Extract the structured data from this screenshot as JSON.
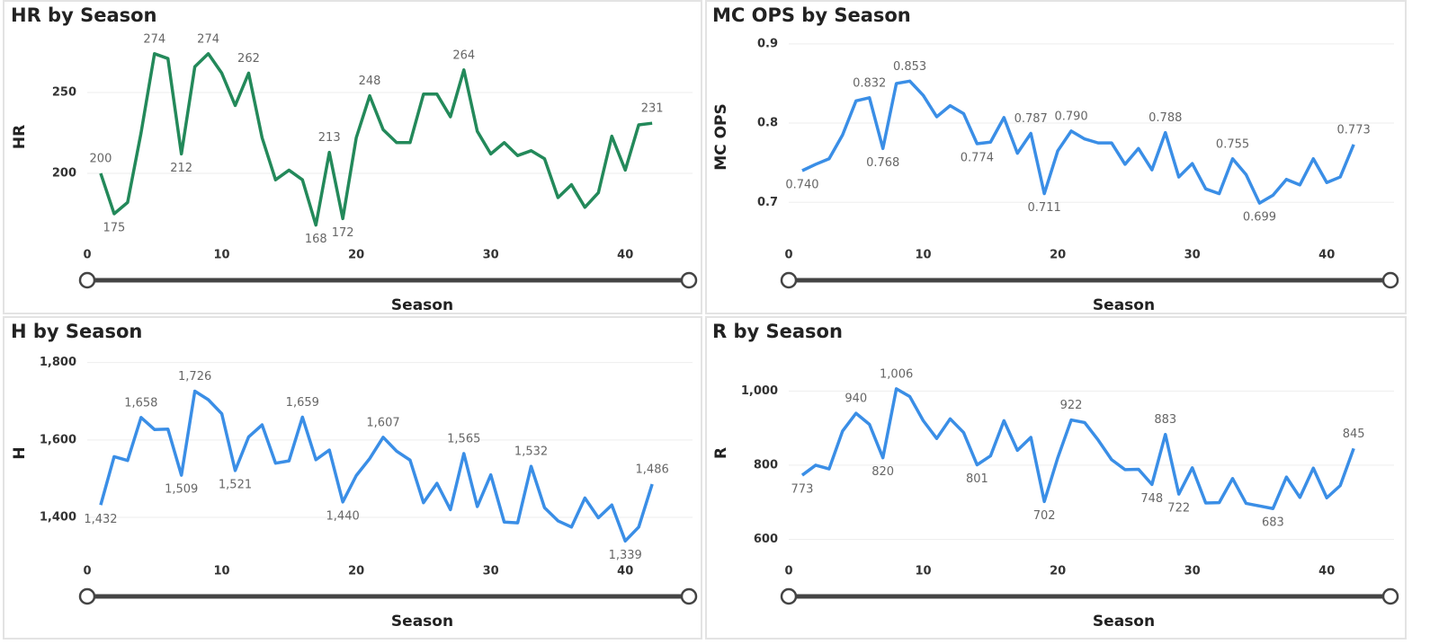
{
  "chart_data": [
    {
      "type": "line",
      "title": "HR by Season",
      "x_label": "Season",
      "y_label": "HR",
      "color": "#23895a",
      "x": [
        1,
        2,
        3,
        4,
        5,
        6,
        7,
        8,
        9,
        10,
        11,
        12,
        13,
        14,
        15,
        16,
        17,
        18,
        19,
        20,
        21,
        22,
        23,
        24,
        25,
        26,
        27,
        28,
        29,
        30,
        31,
        32,
        33,
        34,
        35,
        36,
        37,
        38,
        39,
        40,
        41,
        42
      ],
      "values": [
        200,
        175,
        182,
        225,
        274,
        271,
        212,
        266,
        274,
        262,
        242,
        262,
        222,
        196,
        202,
        196,
        168,
        213,
        172,
        222,
        248,
        227,
        219,
        219,
        249,
        249,
        235,
        264,
        226,
        212,
        219,
        211,
        214,
        209,
        185,
        193,
        179,
        188,
        223,
        202,
        230,
        231
      ],
      "value_labels": [
        "200",
        "175",
        null,
        null,
        "274",
        null,
        "212",
        null,
        "274",
        null,
        null,
        "262",
        null,
        null,
        null,
        null,
        "168",
        "213",
        "172",
        null,
        "248",
        null,
        null,
        null,
        null,
        null,
        null,
        "264",
        null,
        null,
        null,
        null,
        null,
        null,
        null,
        null,
        null,
        null,
        null,
        null,
        null,
        "231"
      ],
      "xlim": [
        0,
        45
      ],
      "xticks": [
        0,
        10,
        20,
        30,
        40
      ],
      "ylim": [
        160,
        285
      ],
      "yticks": [
        200,
        250
      ],
      "grid": true
    },
    {
      "type": "line",
      "title": "MC OPS by Season",
      "x_label": "Season",
      "y_label": "MC OPS",
      "color": "#3a8ee6",
      "x": [
        1,
        2,
        3,
        4,
        5,
        6,
        7,
        8,
        9,
        10,
        11,
        12,
        13,
        14,
        15,
        16,
        17,
        18,
        19,
        20,
        21,
        22,
        23,
        24,
        25,
        26,
        27,
        28,
        29,
        30,
        31,
        32,
        33,
        34,
        35,
        36,
        37,
        38,
        39,
        40,
        41,
        42
      ],
      "values": [
        0.74,
        0.748,
        0.755,
        0.785,
        0.828,
        0.832,
        0.768,
        0.85,
        0.853,
        0.835,
        0.808,
        0.822,
        0.812,
        0.774,
        0.776,
        0.807,
        0.762,
        0.787,
        0.711,
        0.765,
        0.79,
        0.78,
        0.775,
        0.775,
        0.748,
        0.768,
        0.741,
        0.788,
        0.732,
        0.749,
        0.717,
        0.711,
        0.755,
        0.735,
        0.699,
        0.709,
        0.729,
        0.722,
        0.755,
        0.725,
        0.732,
        0.773
      ],
      "value_labels": [
        "0.740",
        null,
        null,
        null,
        null,
        "0.832",
        "0.768",
        null,
        "0.853",
        null,
        null,
        null,
        null,
        "0.774",
        null,
        null,
        null,
        "0.787",
        "0.711",
        null,
        "0.790",
        null,
        null,
        null,
        null,
        null,
        null,
        "0.788",
        null,
        null,
        null,
        null,
        "0.755",
        null,
        "0.699",
        null,
        null,
        null,
        null,
        null,
        null,
        "0.773"
      ],
      "xlim": [
        0,
        45
      ],
      "xticks": [
        0,
        10,
        20,
        30,
        40
      ],
      "ylim": [
        0.655,
        0.91
      ],
      "yticks": [
        0.7,
        0.8,
        0.9
      ],
      "grid": true
    },
    {
      "type": "line",
      "title": "H by Season",
      "x_label": "Season",
      "y_label": "H",
      "color": "#3a8ee6",
      "x": [
        1,
        2,
        3,
        4,
        5,
        6,
        7,
        8,
        9,
        10,
        11,
        12,
        13,
        14,
        15,
        16,
        17,
        18,
        19,
        20,
        21,
        22,
        23,
        24,
        25,
        26,
        27,
        28,
        29,
        30,
        31,
        32,
        33,
        34,
        35,
        36,
        37,
        38,
        39,
        40,
        41,
        42
      ],
      "values": [
        1432,
        1557,
        1547,
        1658,
        1627,
        1628,
        1509,
        1726,
        1704,
        1668,
        1521,
        1608,
        1639,
        1540,
        1546,
        1659,
        1549,
        1574,
        1440,
        1508,
        1552,
        1607,
        1571,
        1548,
        1438,
        1488,
        1420,
        1565,
        1428,
        1510,
        1388,
        1386,
        1532,
        1425,
        1391,
        1375,
        1450,
        1399,
        1432,
        1339,
        1375,
        1486
      ],
      "value_labels": [
        "1,432",
        null,
        null,
        "1,658",
        null,
        null,
        "1,509",
        "1,726",
        null,
        null,
        "1,521",
        null,
        null,
        null,
        null,
        "1,659",
        null,
        null,
        "1,440",
        null,
        null,
        "1,607",
        null,
        null,
        null,
        null,
        null,
        "1,565",
        null,
        null,
        null,
        null,
        "1,532",
        null,
        null,
        null,
        null,
        null,
        null,
        "1,339",
        null,
        "1,486"
      ],
      "xlim": [
        0,
        45
      ],
      "xticks": [
        0,
        10,
        20,
        30,
        40
      ],
      "ylim": [
        1305,
        1827
      ],
      "yticks": [
        {
          "value": 1400,
          "label": "1,400"
        },
        {
          "value": 1600,
          "label": "1,600"
        },
        {
          "value": 1800,
          "label": "1,800"
        }
      ],
      "grid": true
    },
    {
      "type": "line",
      "title": "R by Season",
      "x_label": "Season",
      "y_label": "R",
      "color": "#3a8ee6",
      "x": [
        1,
        2,
        3,
        4,
        5,
        6,
        7,
        8,
        9,
        10,
        11,
        12,
        13,
        14,
        15,
        16,
        17,
        18,
        19,
        20,
        21,
        22,
        23,
        24,
        25,
        26,
        27,
        28,
        29,
        30,
        31,
        32,
        33,
        34,
        35,
        36,
        37,
        38,
        39,
        40,
        41,
        42
      ],
      "values": [
        773,
        800,
        790,
        892,
        940,
        910,
        820,
        1006,
        985,
        920,
        872,
        925,
        888,
        801,
        825,
        920,
        840,
        875,
        702,
        820,
        922,
        915,
        868,
        815,
        788,
        789,
        748,
        883,
        722,
        793,
        698,
        699,
        764,
        697,
        690,
        683,
        768,
        713,
        792,
        712,
        745,
        845
      ],
      "value_labels": [
        "773",
        null,
        null,
        null,
        "940",
        null,
        "820",
        "1,006",
        null,
        null,
        null,
        null,
        null,
        "801",
        null,
        null,
        null,
        null,
        "702",
        null,
        "922",
        null,
        null,
        null,
        null,
        null,
        "748",
        "883",
        "722",
        null,
        null,
        null,
        null,
        null,
        null,
        "683",
        null,
        null,
        null,
        null,
        null,
        "845"
      ],
      "xlim": [
        0,
        45
      ],
      "xticks": [
        0,
        10,
        20,
        30,
        40
      ],
      "ylim": [
        560,
        1105
      ],
      "yticks": [
        {
          "value": 600,
          "label": "600"
        },
        {
          "value": 800,
          "label": "800"
        },
        {
          "value": 1000,
          "label": "1,000"
        }
      ],
      "grid": true
    }
  ]
}
